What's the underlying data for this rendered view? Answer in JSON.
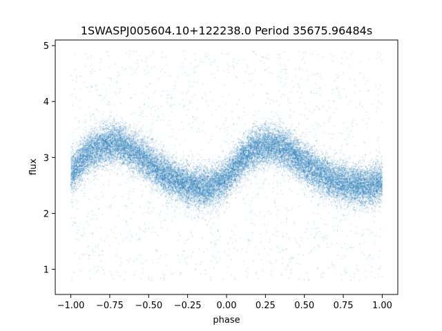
{
  "chart_data": {
    "type": "scatter",
    "title": "1SWASPJ005604.10+122238.0 Period 35675.96484s",
    "xlabel": "phase",
    "ylabel": "flux",
    "xlim": [
      -1.1,
      1.1
    ],
    "ylim": [
      0.55,
      5.1
    ],
    "x_ticks": [
      -1.0,
      -0.75,
      -0.5,
      -0.25,
      0.0,
      0.25,
      0.5,
      0.75,
      1.0
    ],
    "x_tick_labels": [
      "−1.00",
      "−0.75",
      "−0.50",
      "−0.25",
      "0.00",
      "0.25",
      "0.50",
      "0.75",
      "1.00"
    ],
    "y_ticks": [
      1,
      2,
      3,
      4,
      5
    ],
    "y_tick_labels": [
      "1",
      "2",
      "3",
      "4",
      "5"
    ],
    "grid": false,
    "marker_color": "#1f77b4",
    "x_range": [
      -1.0,
      1.0
    ],
    "curve": {
      "phase": [
        -1.0,
        -0.9,
        -0.8,
        -0.7,
        -0.6,
        -0.5,
        -0.4,
        -0.3,
        -0.2,
        -0.1,
        0.0,
        0.1,
        0.2,
        0.3,
        0.4,
        0.5,
        0.6,
        0.7,
        0.8,
        0.9,
        1.0
      ],
      "flux": [
        2.7,
        3.05,
        3.22,
        3.25,
        3.12,
        2.92,
        2.7,
        2.55,
        2.48,
        2.47,
        2.62,
        2.98,
        3.18,
        3.22,
        3.1,
        2.9,
        2.7,
        2.57,
        2.5,
        2.48,
        2.55
      ]
    },
    "core_scatter_sigma": 0.18,
    "outlier_fraction": 0.06,
    "outlier_flux_range": [
      0.8,
      4.9
    ],
    "n_points": 26000
  }
}
